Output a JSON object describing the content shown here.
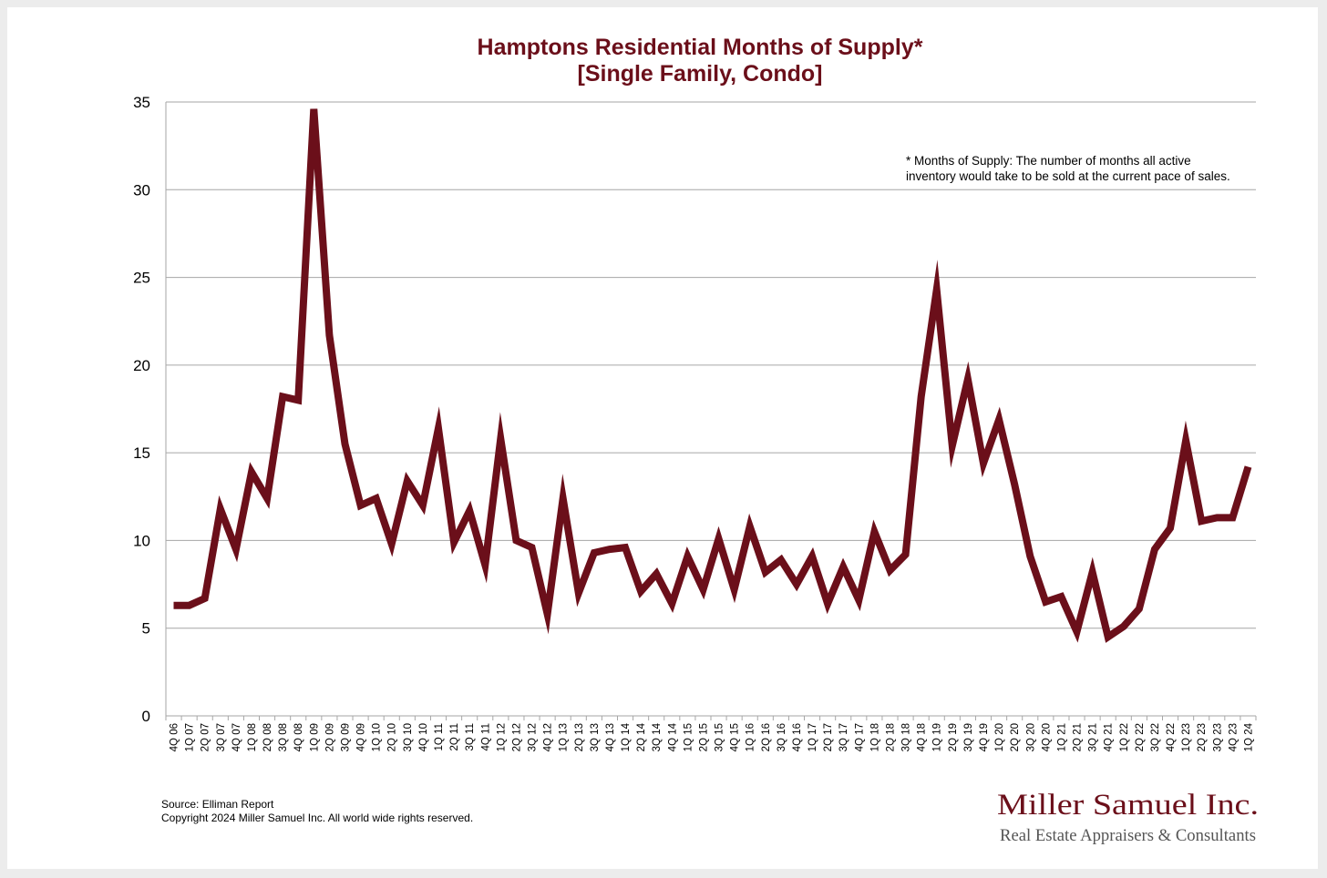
{
  "chart_data": {
    "type": "line",
    "title": "Hamptons Residential Months of Supply*",
    "subtitle": "[Single Family, Condo]",
    "xlabel": "",
    "ylabel": "",
    "ylim": [
      0,
      35
    ],
    "yticks": [
      0,
      5,
      10,
      15,
      20,
      25,
      30,
      35
    ],
    "grid": true,
    "line_color": "#6b0f1a",
    "categories": [
      "4Q 06",
      "1Q 07",
      "2Q 07",
      "3Q 07",
      "4Q 07",
      "1Q 08",
      "2Q 08",
      "3Q 08",
      "4Q 08",
      "1Q 09",
      "2Q 09",
      "3Q 09",
      "4Q 09",
      "1Q 10",
      "2Q 10",
      "3Q 10",
      "4Q 10",
      "1Q 11",
      "2Q 11",
      "3Q 11",
      "4Q 11",
      "1Q 12",
      "2Q 12",
      "3Q 12",
      "4Q 12",
      "1Q 13",
      "2Q 13",
      "3Q 13",
      "4Q 13",
      "1Q 14",
      "2Q 14",
      "3Q 14",
      "4Q 14",
      "1Q 15",
      "2Q 15",
      "3Q 15",
      "4Q 15",
      "1Q 16",
      "2Q 16",
      "3Q 16",
      "4Q 16",
      "1Q 17",
      "2Q 17",
      "3Q 17",
      "4Q 17",
      "1Q 18",
      "2Q 18",
      "3Q 18",
      "4Q 18",
      "1Q 19",
      "2Q 19",
      "3Q 19",
      "4Q 19",
      "1Q 20",
      "2Q 20",
      "3Q 20",
      "4Q 20",
      "1Q 21",
      "2Q 21",
      "3Q 21",
      "4Q 21",
      "1Q 22",
      "2Q 22",
      "3Q 22",
      "4Q 22",
      "1Q 23",
      "2Q 23",
      "3Q 23",
      "4Q 23",
      "1Q 24"
    ],
    "series": [
      {
        "name": "Months of Supply",
        "values": [
          6.3,
          6.3,
          6.7,
          11.8,
          9.5,
          13.9,
          12.4,
          18.2,
          18.0,
          34.6,
          21.7,
          15.5,
          12.0,
          12.4,
          9.8,
          13.4,
          12.0,
          16.4,
          9.9,
          11.7,
          8.6,
          15.8,
          10.0,
          9.6,
          5.8,
          12.4,
          7.0,
          9.3,
          9.5,
          9.6,
          7.1,
          8.1,
          6.4,
          9.1,
          7.2,
          10.1,
          7.2,
          10.8,
          8.2,
          8.9,
          7.5,
          9.1,
          6.4,
          8.5,
          6.6,
          10.5,
          8.3,
          9.2,
          18.2,
          24.3,
          15.4,
          19.2,
          14.4,
          16.9,
          13.2,
          9.1,
          6.5,
          6.8,
          4.8,
          8.2,
          4.5,
          5.1,
          6.1,
          9.5,
          10.7,
          15.7,
          11.1,
          11.3,
          11.3,
          14.2
        ]
      }
    ]
  },
  "annotation": {
    "line1": "* Months of Supply: The number of months all active",
    "line2": "inventory would take to be sold at the current pace of sales."
  },
  "footer": {
    "source": "Source: Elliman Report",
    "copyright": "Copyright 2024 Miller Samuel Inc.  All world wide rights reserved."
  },
  "brand": {
    "name": "Miller Samuel Inc.",
    "tagline": "Real Estate Appraisers & Consultants"
  }
}
